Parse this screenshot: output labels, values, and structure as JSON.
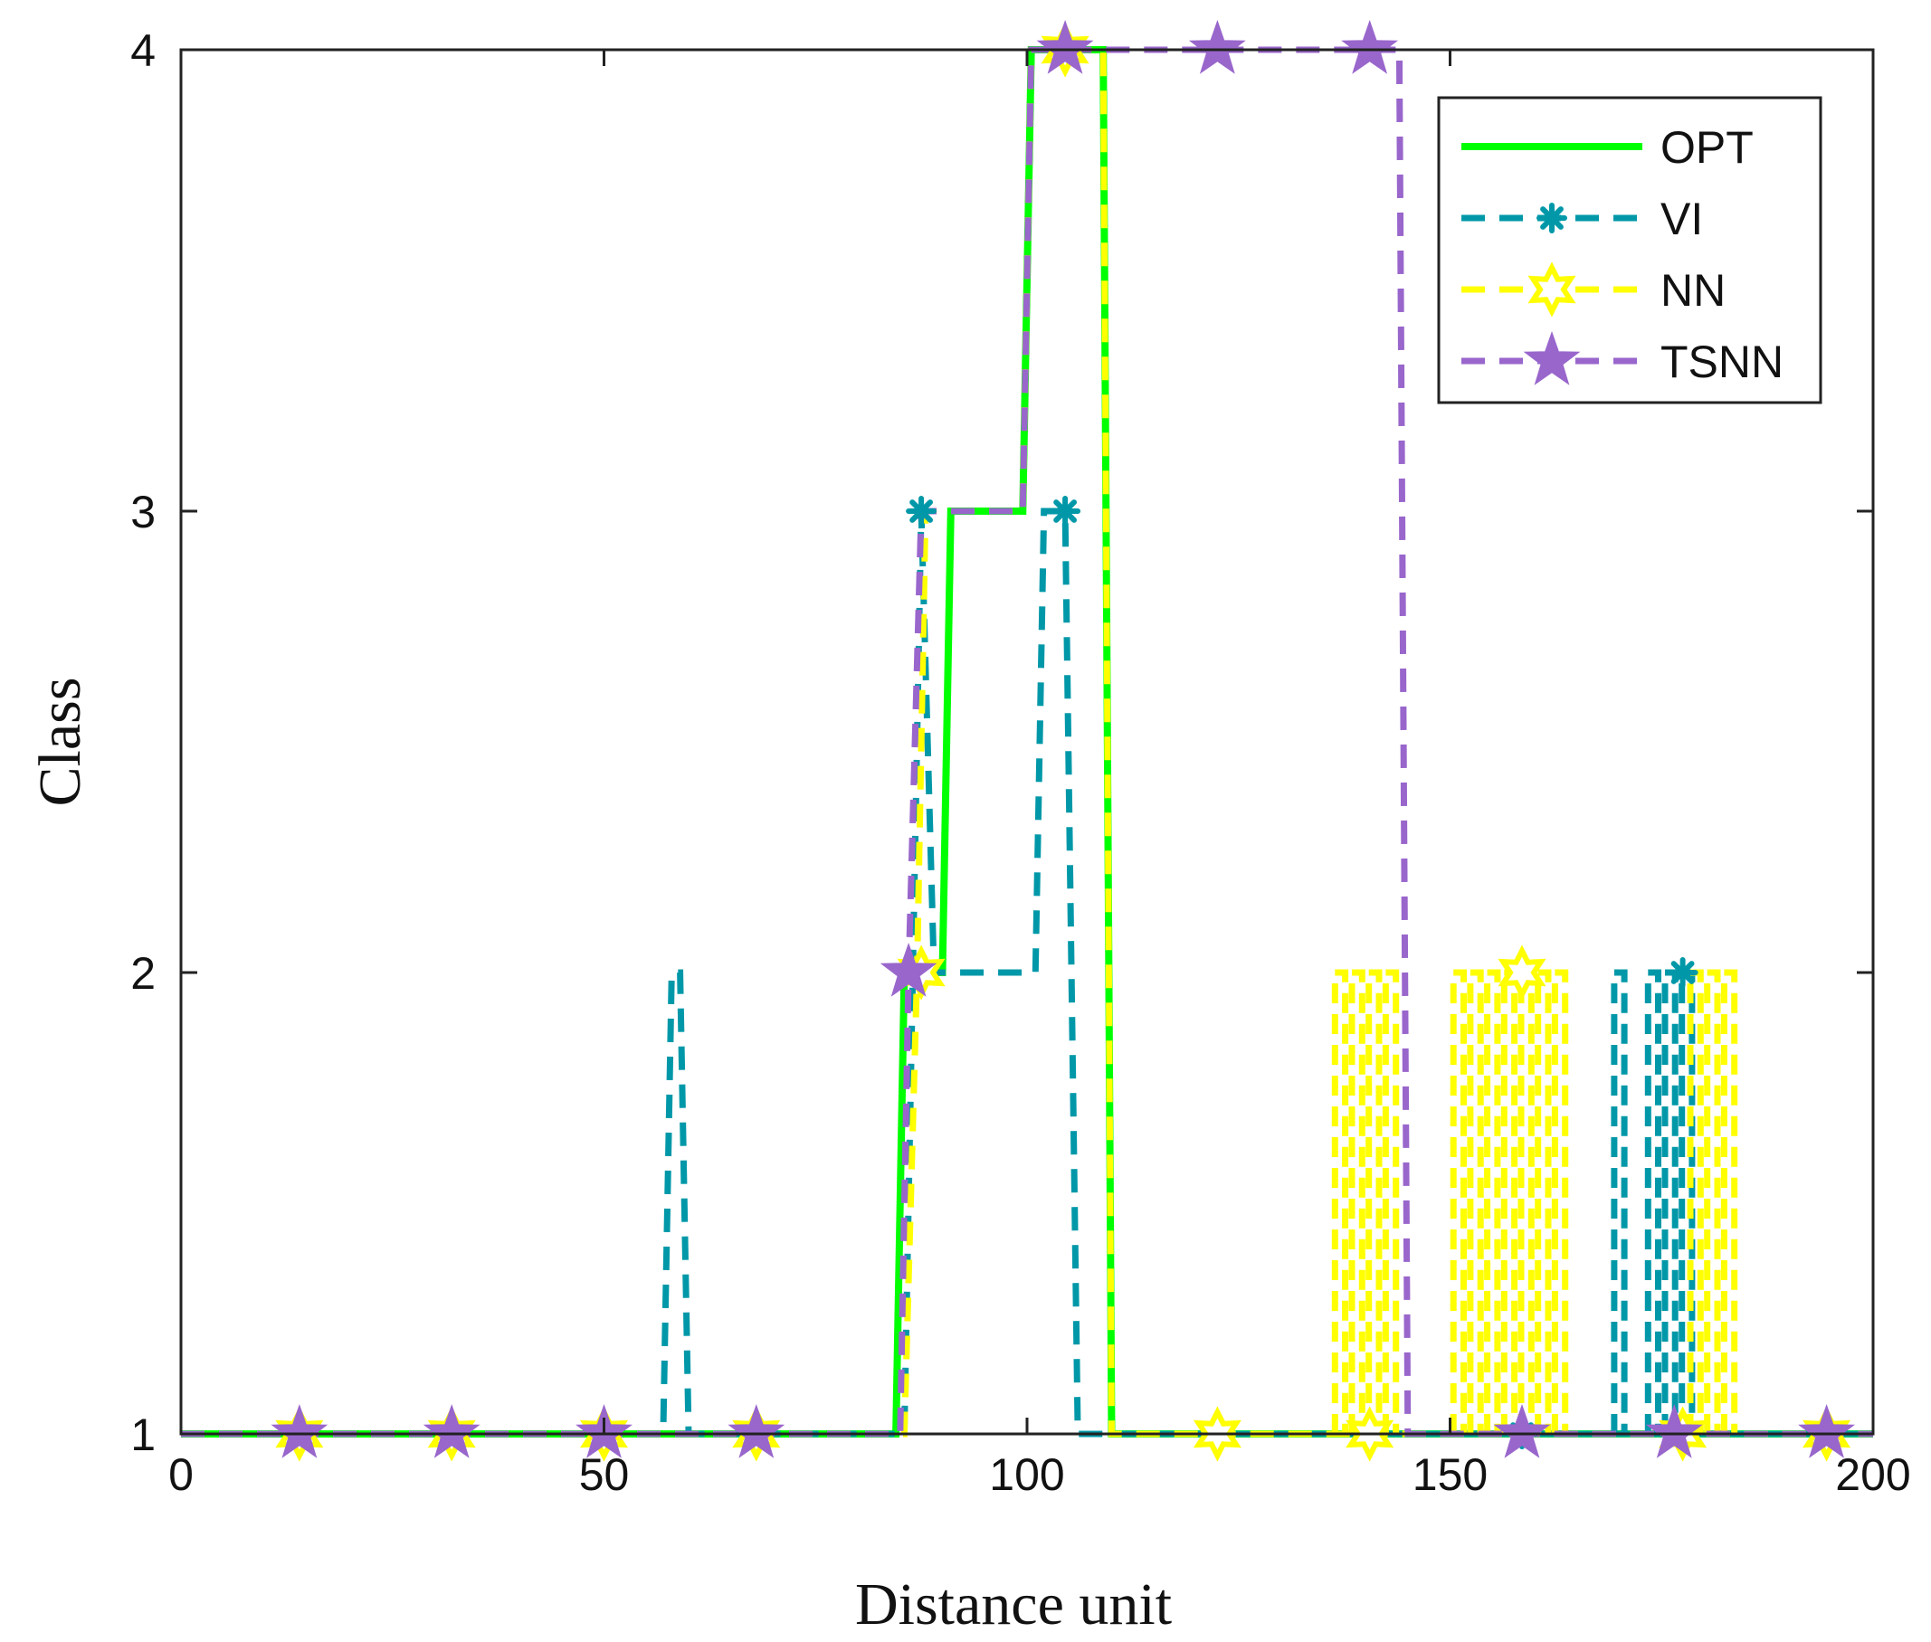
{
  "chart_data": {
    "type": "line",
    "title": "",
    "xlabel": "Distance unit",
    "ylabel": "Class",
    "xlim": [
      0,
      200
    ],
    "ylim": [
      1,
      4
    ],
    "xticks": [
      0,
      50,
      100,
      150,
      200
    ],
    "xtick_labels": [
      "0",
      "50",
      "100",
      "150",
      "200"
    ],
    "yticks": [
      1,
      2,
      3,
      4
    ],
    "ytick_labels": [
      "1",
      "2",
      "3",
      "4"
    ],
    "grid": false,
    "legend_position": "top-right",
    "series": [
      {
        "name": "OPT",
        "color": "#00ff00",
        "style": "solid",
        "marker": "none",
        "x": [
          0,
          84.5,
          85.5,
          90,
          91,
          99.5,
          100.5,
          109,
          110,
          200
        ],
        "y": [
          1,
          1,
          2,
          2,
          3,
          3,
          4,
          4,
          1,
          1
        ],
        "marker_x": []
      },
      {
        "name": "VI",
        "color": "#0098a8",
        "style": "dashed",
        "marker": "asterisk",
        "x": [
          0,
          57,
          58,
          59,
          60,
          85.5,
          86.5,
          87.5,
          89,
          101,
          102,
          104.5,
          106,
          110,
          200
        ],
        "y": [
          1,
          1,
          2,
          2,
          1,
          1,
          2,
          3,
          2,
          2,
          3,
          3,
          1,
          1,
          1
        ],
        "marker_x": [
          14,
          32,
          50,
          68,
          87.5,
          104.5,
          122.5,
          140.5,
          158.5,
          177.5,
          194.5
        ],
        "marker_y": [
          1,
          1,
          1,
          1,
          3,
          3,
          1,
          1,
          1,
          2,
          1
        ],
        "spikes_x": [
          168,
          170,
          172,
          174,
          176,
          178,
          179
        ],
        "spikes_y": [
          1,
          2,
          1,
          2,
          2,
          2,
          1
        ]
      },
      {
        "name": "NN",
        "color": "#ffff00",
        "style": "dashed",
        "marker": "hexagram",
        "x": [
          0,
          85.5,
          87,
          88,
          89.5,
          99.5,
          100.5,
          109,
          110,
          200
        ],
        "y": [
          1,
          1,
          2,
          3,
          3,
          3,
          4,
          4,
          1,
          1
        ],
        "marker_x": [
          14,
          32,
          50,
          68,
          87.5,
          104.5,
          122.5,
          140.5,
          158.5,
          177.5,
          194.5
        ],
        "marker_y": [
          1,
          1,
          1,
          1,
          2,
          4,
          1,
          1,
          2,
          1,
          1
        ],
        "spikes_x": [
          137,
          139,
          141,
          143,
          151,
          153,
          155,
          157,
          159,
          161,
          163,
          179,
          181,
          183
        ],
        "spikes_y": [
          2,
          2,
          2,
          2,
          2,
          2,
          2,
          2,
          2,
          2,
          2,
          2,
          2,
          2
        ]
      },
      {
        "name": "TSNN",
        "color": "#9966cc",
        "style": "dashed",
        "marker": "pentagram",
        "x": [
          0,
          85,
          86,
          87.5,
          88.5,
          99.5,
          100.5,
          144,
          145,
          200
        ],
        "y": [
          1,
          1,
          2,
          3,
          3,
          3,
          4,
          4,
          1,
          1
        ],
        "marker_x": [
          14,
          32,
          50,
          68,
          86,
          104.5,
          122.5,
          140.5,
          158.5,
          176.5,
          194.5
        ],
        "marker_y": [
          1,
          1,
          1,
          1,
          2,
          4,
          4,
          4,
          1,
          1,
          1
        ]
      }
    ]
  }
}
